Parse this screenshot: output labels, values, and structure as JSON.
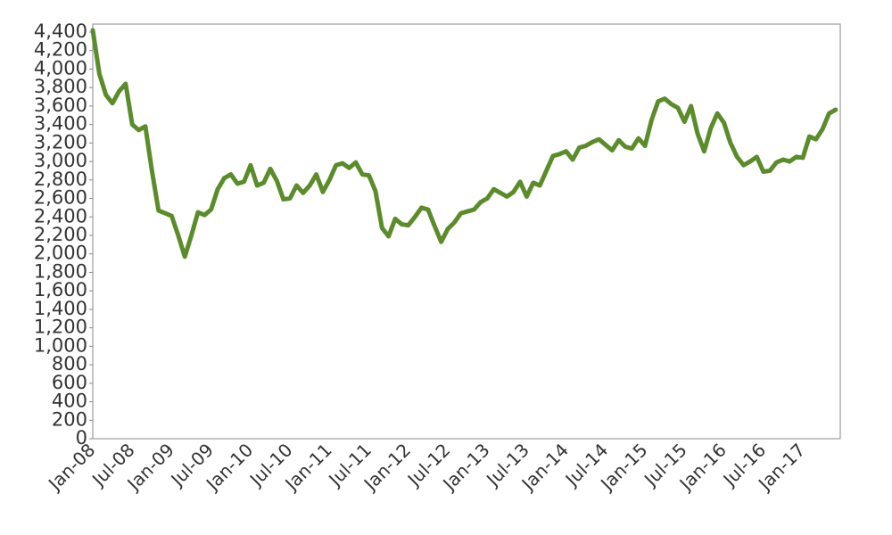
{
  "chart_data": {
    "type": "line",
    "categories": [
      "Jan-08",
      null,
      null,
      null,
      null,
      null,
      "Jul-08",
      null,
      null,
      null,
      null,
      null,
      "Jan-09",
      null,
      null,
      null,
      null,
      null,
      "Jul-09",
      null,
      null,
      null,
      null,
      null,
      "Jan-10",
      null,
      null,
      null,
      null,
      null,
      "Jul-10",
      null,
      null,
      null,
      null,
      null,
      "Jan-11",
      null,
      null,
      null,
      null,
      null,
      "Jul-11",
      null,
      null,
      null,
      null,
      null,
      "Jan-12",
      null,
      null,
      null,
      null,
      null,
      "Jul-12",
      null,
      null,
      null,
      null,
      null,
      "Jan-13",
      null,
      null,
      null,
      null,
      null,
      "Jul-13",
      null,
      null,
      null,
      null,
      null,
      "Jan-14",
      null,
      null,
      null,
      null,
      null,
      "Jul-14",
      null,
      null,
      null,
      null,
      null,
      "Jan-15",
      null,
      null,
      null,
      null,
      null,
      "Jul-15",
      null,
      null,
      null,
      null,
      null,
      "Jan-16",
      null,
      null,
      null,
      null,
      null,
      "Jul-16",
      null,
      null,
      null,
      null,
      null,
      "Jan-17",
      null,
      null,
      null,
      null,
      null
    ],
    "values": [
      4420,
      3950,
      3720,
      3630,
      3760,
      3840,
      3400,
      3340,
      3380,
      2900,
      2470,
      2440,
      2410,
      2200,
      1970,
      2200,
      2450,
      2420,
      2480,
      2700,
      2820,
      2860,
      2760,
      2780,
      2960,
      2740,
      2770,
      2920,
      2790,
      2590,
      2600,
      2740,
      2660,
      2740,
      2860,
      2670,
      2800,
      2960,
      2980,
      2930,
      2990,
      2860,
      2850,
      2680,
      2280,
      2190,
      2380,
      2320,
      2310,
      2400,
      2500,
      2480,
      2300,
      2130,
      2270,
      2340,
      2440,
      2460,
      2480,
      2560,
      2600,
      2700,
      2660,
      2620,
      2670,
      2780,
      2620,
      2770,
      2740,
      2900,
      3060,
      3080,
      3110,
      3020,
      3150,
      3170,
      3210,
      3240,
      3180,
      3120,
      3230,
      3160,
      3140,
      3250,
      3170,
      3450,
      3650,
      3680,
      3620,
      3580,
      3430,
      3600,
      3300,
      3110,
      3360,
      3520,
      3420,
      3200,
      3050,
      2960,
      3000,
      3050,
      2890,
      2900,
      2990,
      3020,
      3000,
      3050,
      3040,
      3270,
      3240,
      3350,
      3520,
      3560
    ],
    "color": "#5b8c2a",
    "ylim": [
      0,
      4400
    ],
    "yticks": [
      0,
      200,
      400,
      600,
      800,
      {
        "value": 1000,
        "label": "1,000"
      },
      {
        "value": 1200,
        "label": "1,200"
      },
      {
        "value": 1400,
        "label": "1,400"
      },
      {
        "value": 1600,
        "label": "1,600"
      },
      {
        "value": 1800,
        "label": "1,800"
      },
      {
        "value": 2000,
        "label": "2,000"
      },
      {
        "value": 2200,
        "label": "2,200"
      },
      {
        "value": 2400,
        "label": "2,400"
      },
      {
        "value": 2600,
        "label": "2,600"
      },
      {
        "value": 2800,
        "label": "2,800"
      },
      {
        "value": 3000,
        "label": "3,000"
      },
      {
        "value": 3200,
        "label": "3,200"
      },
      {
        "value": 3400,
        "label": "3,400"
      },
      {
        "value": 3600,
        "label": "3,600"
      },
      {
        "value": 3800,
        "label": "3,800"
      },
      {
        "value": 4000,
        "label": "4,000"
      },
      {
        "value": 4200,
        "label": "4,200"
      },
      {
        "value": 4400,
        "label": "4,400"
      }
    ]
  }
}
